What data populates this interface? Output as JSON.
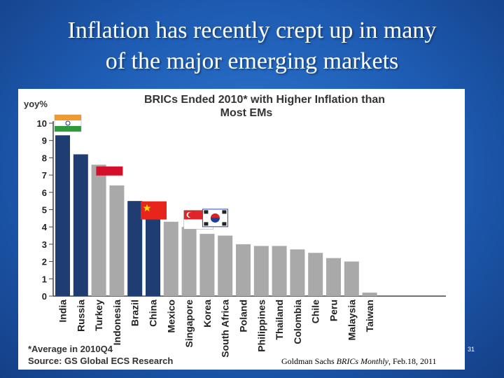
{
  "slide": {
    "title_line1": "Inflation has recently crept up in many",
    "title_line2": "of the major emerging markets",
    "citation_source": "Goldman Sachs ",
    "citation_pub": "BRICs Monthly",
    "citation_date": ", Feb.18, 2011",
    "page_number": "31"
  },
  "colors": {
    "bric": "#1f3d73",
    "other": "#a9a9a9",
    "axis": "#444444"
  },
  "chart_data": {
    "type": "bar",
    "title_line1": "BRICs Ended 2010* with Higher Inflation than",
    "title_line2": "Most EMs",
    "ylabel": "yoy%",
    "xlabel": "",
    "ylim": [
      0,
      10
    ],
    "yticks": [
      0,
      1,
      2,
      3,
      4,
      5,
      6,
      7,
      8,
      9,
      10
    ],
    "categories": [
      "India",
      "Russia",
      "Turkey",
      "Indonesia",
      "Brazil",
      "China",
      "Mexico",
      "Singapore",
      "Korea",
      "South Africa",
      "Poland",
      "Philippines",
      "Thailand",
      "Colombia",
      "Chile",
      "Peru",
      "Malaysia",
      "Taiwan"
    ],
    "values": [
      9.3,
      8.2,
      7.6,
      6.4,
      5.5,
      4.7,
      4.3,
      4.0,
      3.6,
      3.5,
      3.0,
      2.9,
      2.9,
      2.7,
      2.5,
      2.2,
      2.0,
      0.2
    ],
    "groups": [
      "bric",
      "bric",
      "other",
      "other",
      "bric",
      "bric",
      "other",
      "other",
      "other",
      "other",
      "other",
      "other",
      "other",
      "other",
      "other",
      "other",
      "other",
      "other"
    ],
    "flags": [
      {
        "country": "India",
        "category_index": 0,
        "value": 10.0,
        "icon": "india-flag-icon"
      },
      {
        "country": "Indonesia",
        "category_index": 3,
        "value": 7.5,
        "icon": "indonesia-flag-icon"
      },
      {
        "country": "China",
        "category_index": 5,
        "value": 5.4,
        "icon": "china-flag-icon"
      },
      {
        "country": "Singapore",
        "category_index": 7,
        "value": 4.8,
        "icon": "singapore-flag-icon"
      },
      {
        "country": "Korea",
        "category_index": 8,
        "value": 4.5,
        "icon": "korea-flag-icon"
      }
    ],
    "footnote_line1": "*Average in 2010Q4",
    "footnote_line2": "Source: GS Global ECS Research"
  }
}
